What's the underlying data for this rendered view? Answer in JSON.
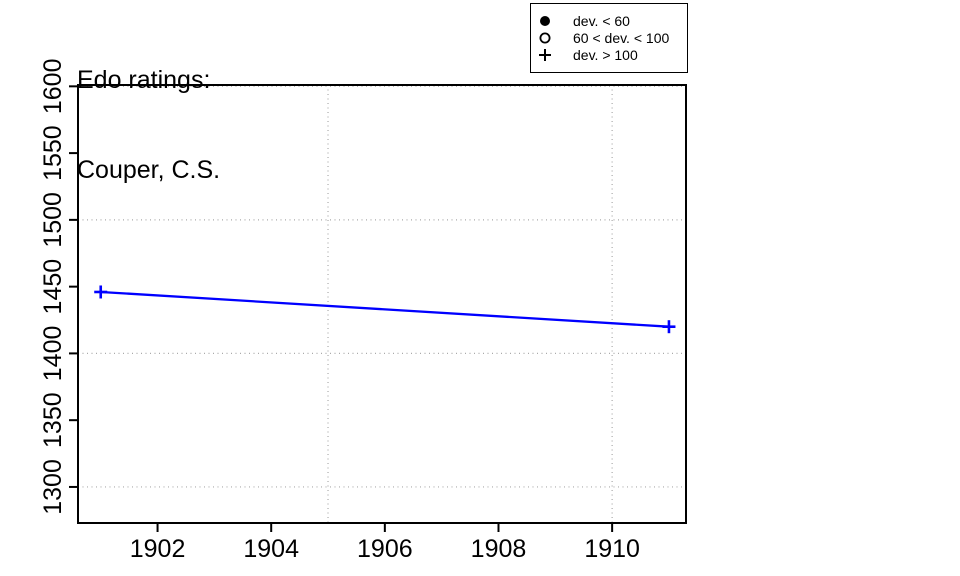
{
  "title": {
    "line1": "Edo ratings:",
    "line2": "Couper, C.S."
  },
  "legend": {
    "items": [
      {
        "symbol": "filled-circle",
        "label": "dev. < 60"
      },
      {
        "symbol": "open-circle",
        "label": "60 < dev. < 100"
      },
      {
        "symbol": "plus",
        "label": "dev. > 100"
      }
    ]
  },
  "chart_data": {
    "type": "line",
    "title": "Edo ratings: Couper, C.S.",
    "xlabel": "",
    "ylabel": "",
    "xlim": [
      1900.6,
      1911.3
    ],
    "ylim": [
      1273,
      1601
    ],
    "x_ticks": [
      1902,
      1904,
      1906,
      1908,
      1910
    ],
    "y_ticks": [
      1300,
      1350,
      1400,
      1450,
      1500,
      1550,
      1600
    ],
    "x_gridlines": [
      1905,
      1910
    ],
    "y_gridlines": [
      1300,
      1400,
      1500,
      1600
    ],
    "grid_style": "dotted",
    "legend_position": "top-right",
    "series": [
      {
        "name": "Couper, C.S.",
        "marker": "plus",
        "color": "#0000ff",
        "points": [
          {
            "x": 1901,
            "y": 1446
          },
          {
            "x": 1911,
            "y": 1420
          }
        ]
      }
    ],
    "colors": {
      "line": "#0000ff",
      "grid": "#aaaaaa",
      "axis": "#000000",
      "background": "#ffffff"
    }
  }
}
